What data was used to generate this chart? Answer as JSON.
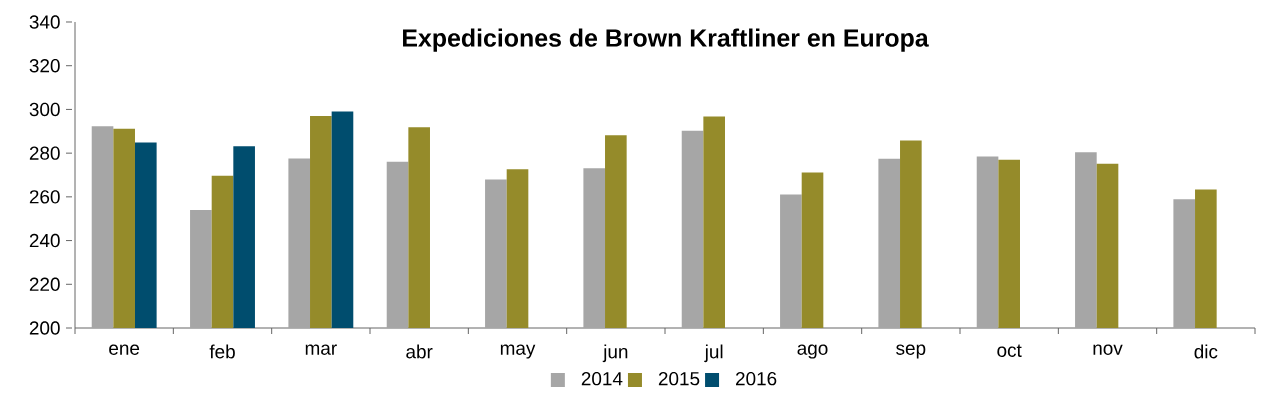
{
  "chart_data": {
    "type": "bar",
    "title": "Expediciones de Brown Kraftliner en Europa",
    "categories": [
      "ene",
      "feb",
      "mar",
      "abr",
      "may",
      "jun",
      "jul",
      "ago",
      "sep",
      "oct",
      "nov",
      "dic"
    ],
    "series": [
      {
        "name": "2014",
        "color": "#a6a6a6",
        "values": [
          292.3,
          254.0,
          277.6,
          276.1,
          267.9,
          273.1,
          290.3,
          261.1,
          277.4,
          278.5,
          280.4,
          258.9
        ]
      },
      {
        "name": "2015",
        "color": "#958b2a",
        "values": [
          291.2,
          269.7,
          297.0,
          291.8,
          272.6,
          288.2,
          296.8,
          271.2,
          285.8,
          277.0,
          275.1,
          263.4
        ]
      },
      {
        "name": "2016",
        "color": "#004d6e",
        "values": [
          284.9,
          283.2,
          299.1,
          null,
          null,
          null,
          null,
          null,
          null,
          null,
          null,
          null
        ]
      }
    ],
    "ylim": [
      200,
      340
    ],
    "yticks": [
      200,
      220,
      240,
      260,
      280,
      300,
      320,
      340
    ],
    "grid": false,
    "legend": "bottom"
  }
}
